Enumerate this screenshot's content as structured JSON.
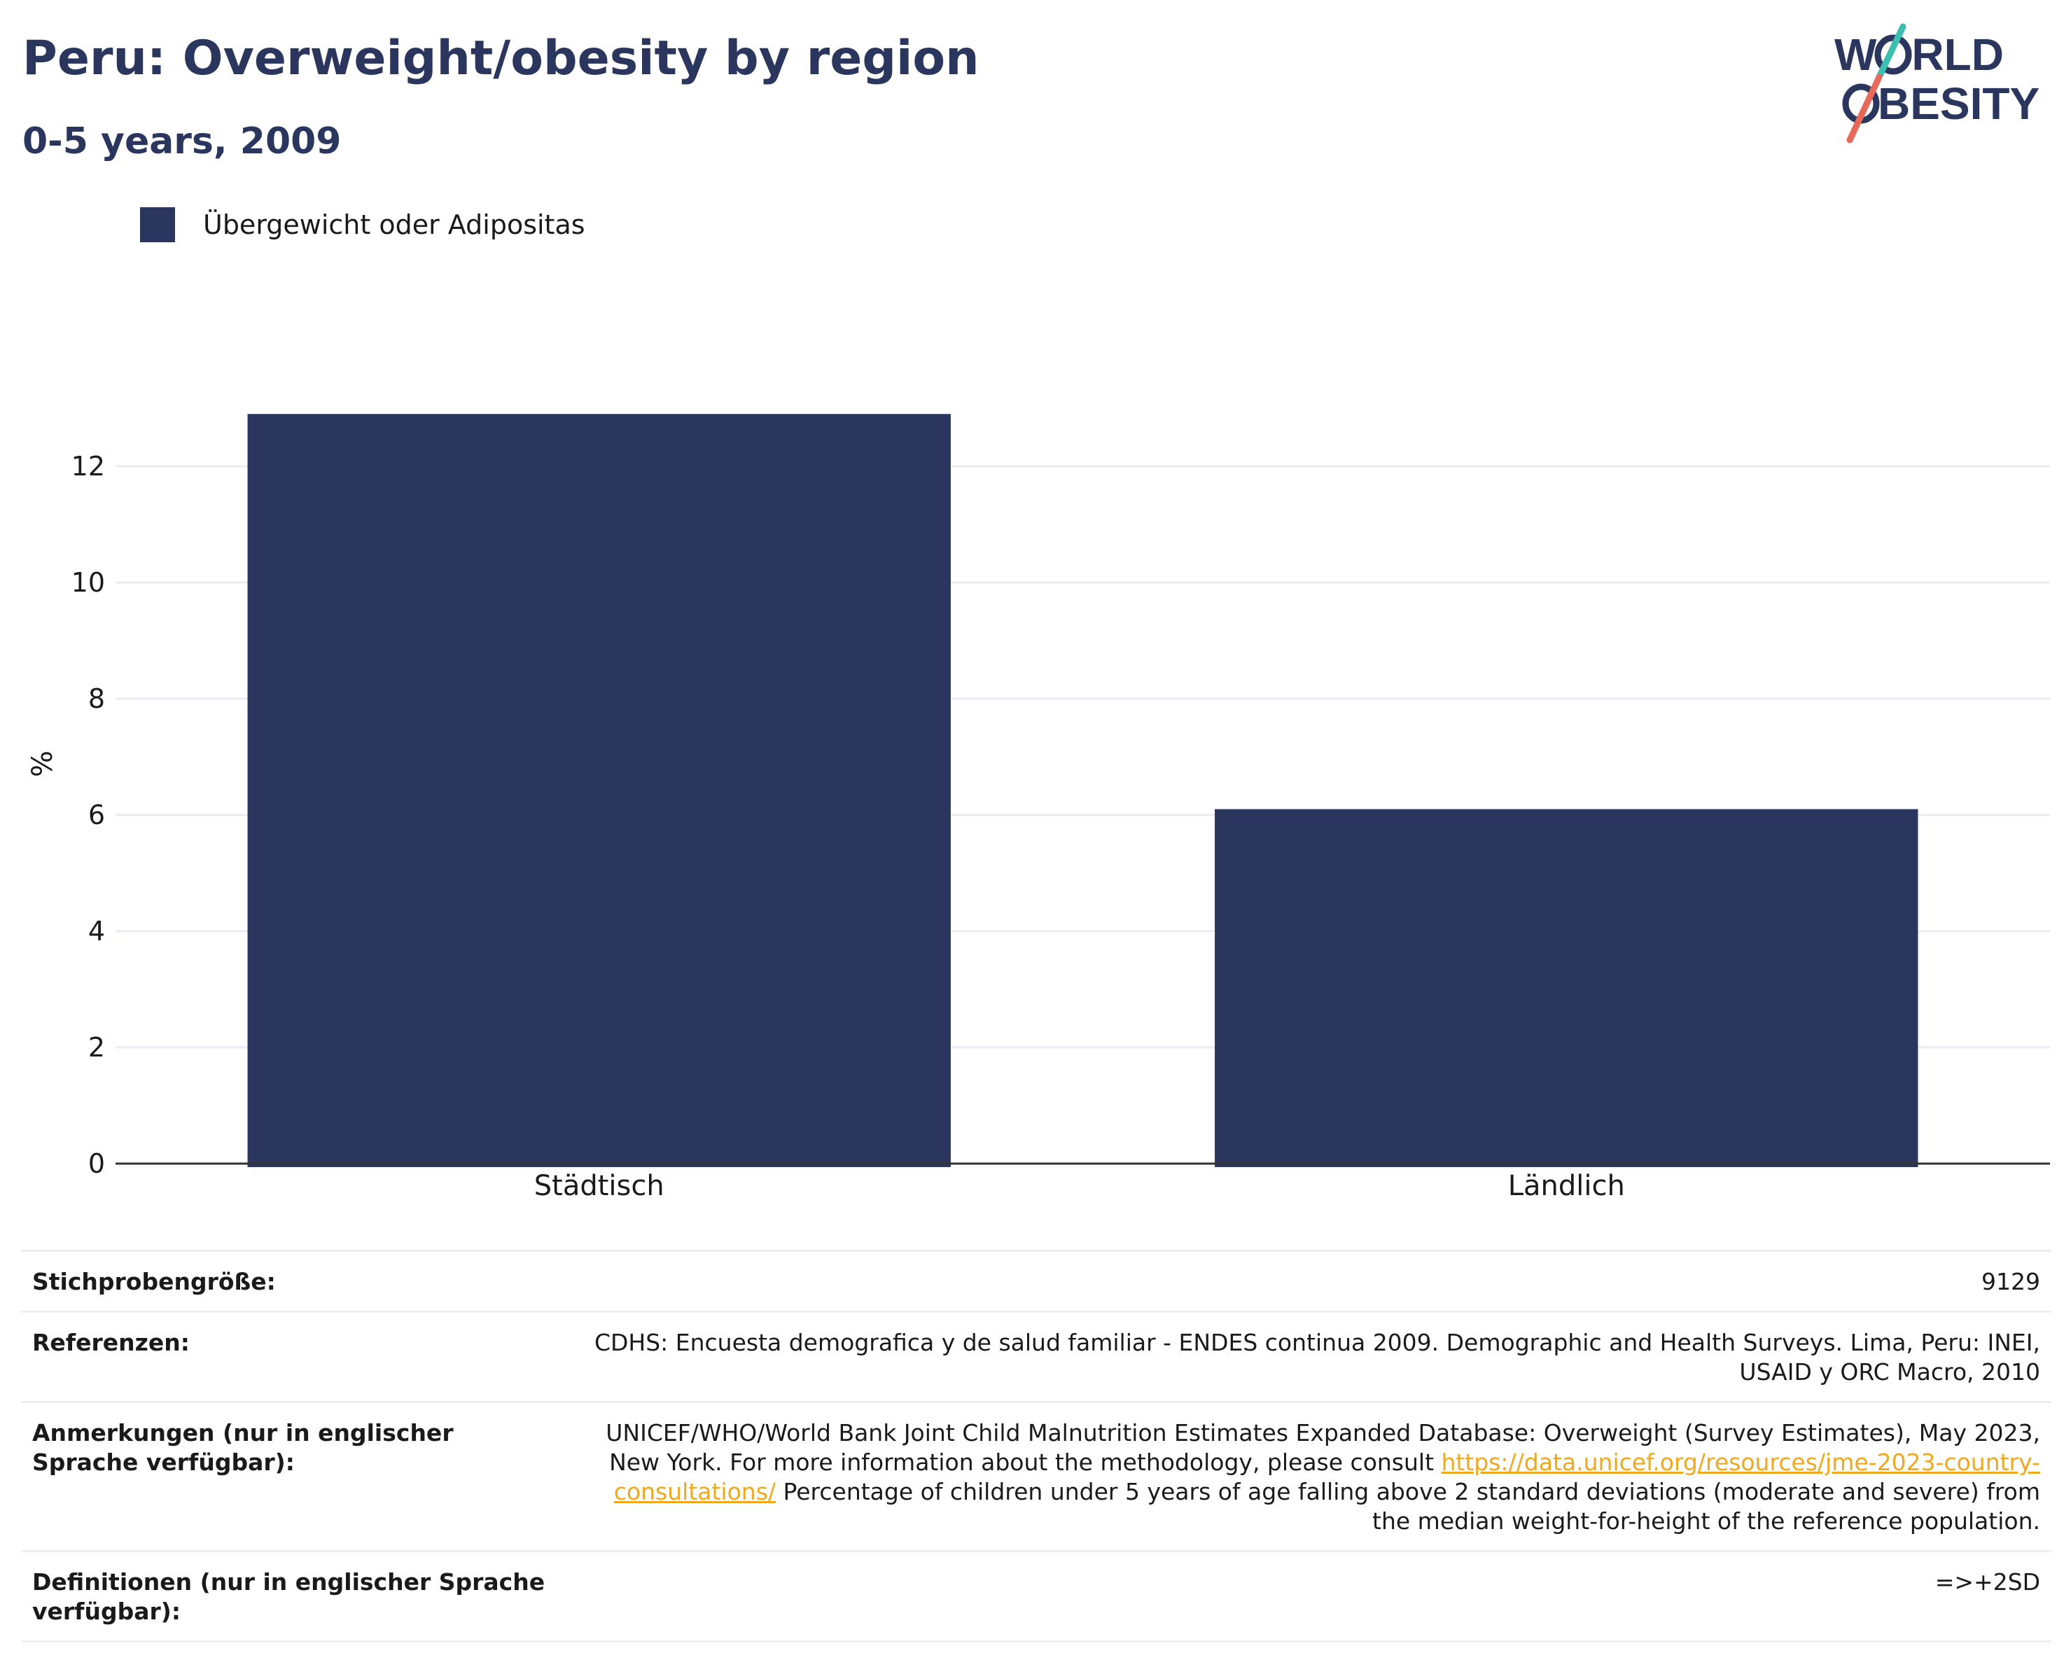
{
  "header": {
    "title": "Peru: Overweight/obesity by region",
    "subtitle": "0-5 years, 2009"
  },
  "logo": {
    "line1": "W",
    "line1b": "RLD",
    "line2": "BESITY"
  },
  "legend": {
    "label": "Übergewicht oder Adipositas",
    "color": "#2b365f"
  },
  "chart_data": {
    "type": "bar",
    "categories": [
      "Städtisch",
      "Ländlich"
    ],
    "series": [
      {
        "name": "Übergewicht oder Adipositas",
        "values": [
          12.9,
          6.1
        ]
      }
    ],
    "xlabel": "",
    "ylabel": "%",
    "ylim": [
      0,
      14
    ],
    "yticks": [
      0,
      2,
      4,
      6,
      8,
      10,
      12
    ],
    "grid": true,
    "legend_position": "top-left",
    "bar_color": "#2b365f"
  },
  "details": {
    "sample_size": {
      "label": "Stichprobengröße:",
      "value": "9129"
    },
    "references": {
      "label": "Referenzen:",
      "value": "CDHS: Encuesta demografica y de salud familiar - ENDES continua 2009. Demographic and Health Surveys. Lima, Peru: INEI, USAID y ORC Macro, 2010"
    },
    "notes": {
      "label": "Anmerkungen (nur in englischer Sprache verfügbar):",
      "text_before": "UNICEF/WHO/World Bank Joint Child Malnutrition Estimates Expanded Database: Overweight (Survey Estimates), May 2023, New York. For more information about the methodology, please consult ",
      "link": "https://data.unicef.org/resources/jme-2023-country-consultations/",
      "text_after": " Percentage of children under 5 years of age falling above 2 standard deviations (moderate and severe) from the median weight-for-height of the reference population."
    },
    "definitions": {
      "label": "Definitionen (nur in englischer Sprache verfügbar):",
      "value": "=>+2SD"
    }
  }
}
